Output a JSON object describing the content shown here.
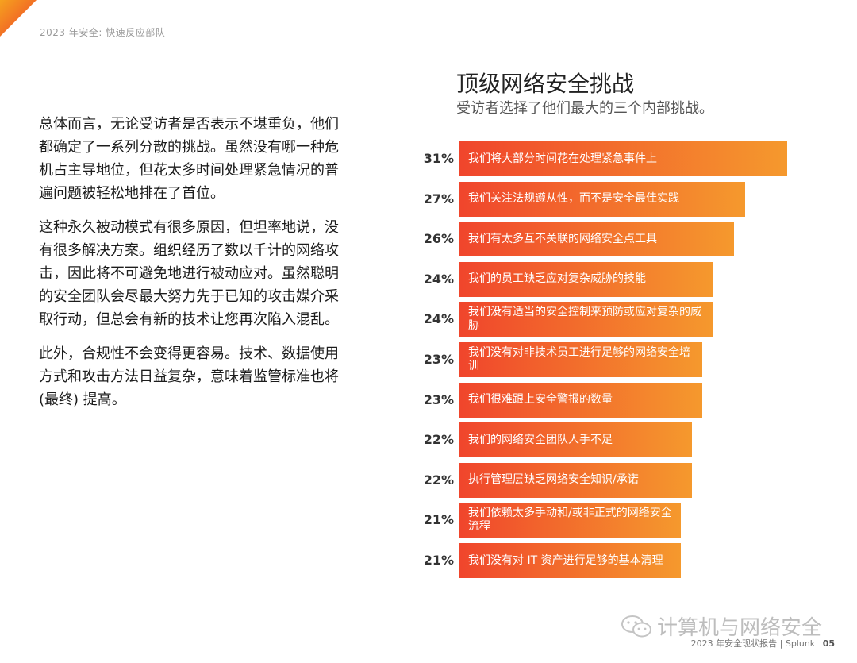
{
  "header": {
    "text": "2023 年安全: 快速反应部队"
  },
  "body_paragraphs": [
    "总体而言，无论受访者是否表示不堪重负，他们都确定了一系列分散的挑战。虽然没有哪一种危机占主导地位，但花太多时间处理紧急情况的普遍问题被轻松地排在了首位。",
    "这种永久被动模式有很多原因，但坦率地说，没有很多解决方案。组织经历了数以千计的网络攻击，因此将不可避免地进行被动应对。虽然聪明的安全团队会尽最大努力先于已知的攻击媒介采取行动，但总会有新的技术让您再次陷入混乱。",
    "此外，合规性不会变得更容易。技术、数据使用方式和攻击方法日益复杂，意味着监管标准也将 (最终) 提高。"
  ],
  "chart_data": {
    "type": "bar",
    "orientation": "horizontal",
    "title": "顶级网络安全挑战",
    "subtitle": "受访者选择了他们最大的三个内部挑战。",
    "unit": "%",
    "categories": [
      "我们将大部分时间花在处理紧急事件上",
      "我们关注法规遵从性，而不是安全最佳实践",
      "我们有太多互不关联的网络安全点工具",
      "我们的员工缺乏应对复杂威胁的技能",
      "我们没有适当的安全控制来预防或应对复杂的威胁",
      "我们没有对非技术员工进行足够的网络安全培训",
      "我们很难跟上安全警报的数量",
      "我们的网络安全团队人手不足",
      "执行管理层缺乏网络安全知识/承诺",
      "我们依赖太多手动和/或非正式的网络安全流程",
      "我们没有对 IT 资产进行足够的基本清理"
    ],
    "values": [
      31,
      27,
      26,
      24,
      24,
      23,
      23,
      22,
      22,
      21,
      21
    ],
    "value_labels": [
      "31%",
      "27%",
      "26%",
      "24%",
      "24%",
      "23%",
      "23%",
      "22%",
      "22%",
      "21%",
      "21%"
    ],
    "colors": {
      "bar_start": "#f0452c",
      "bar_end": "#f5992d"
    }
  },
  "watermark": {
    "text": "计算机与网络安全"
  },
  "footer": {
    "text": "2023 年安全现状报告 | Splunk",
    "page": "05"
  }
}
